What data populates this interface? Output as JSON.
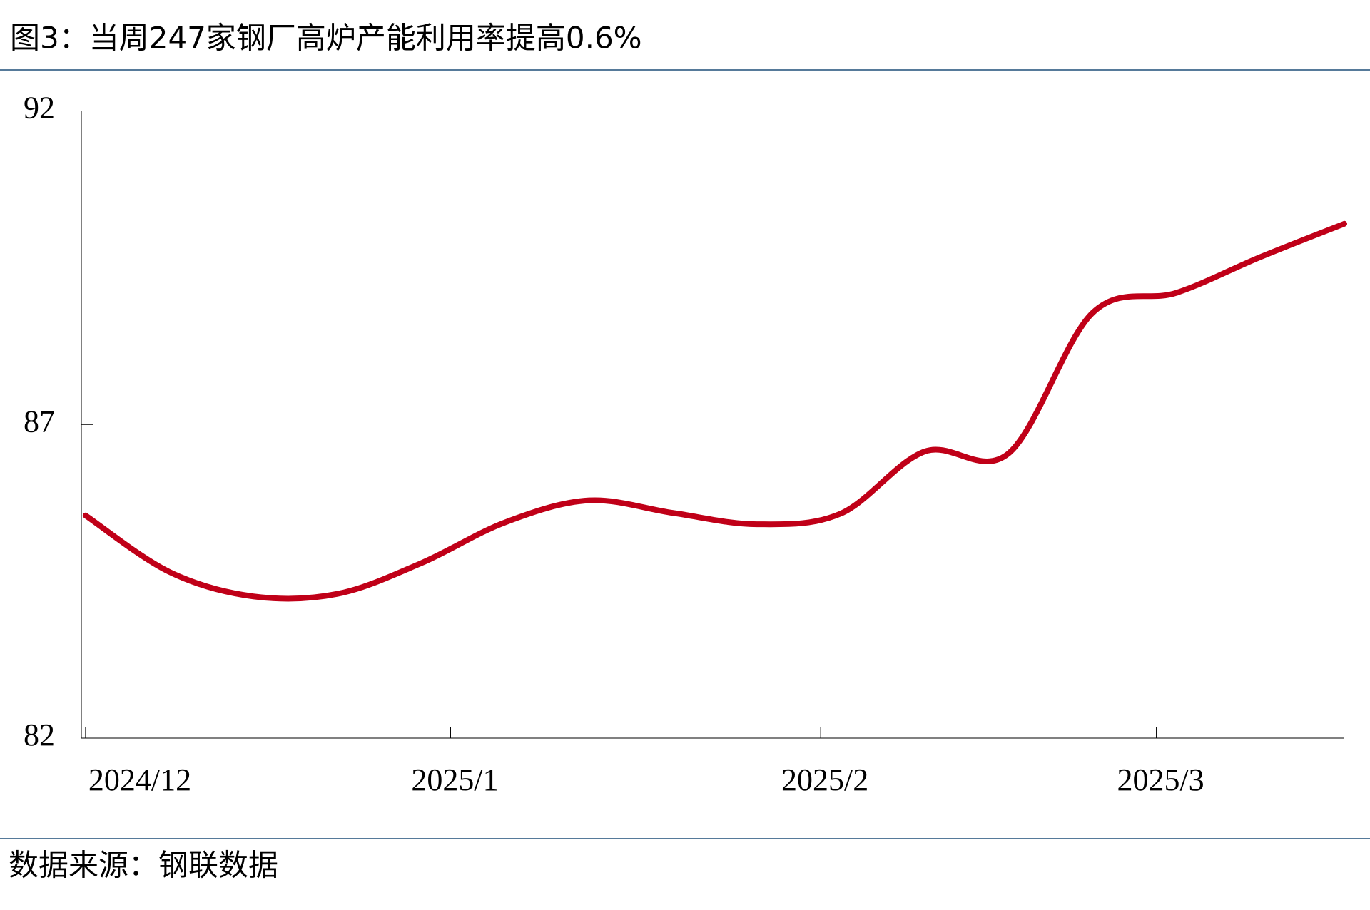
{
  "chart_data": {
    "type": "line",
    "title": "图3：当周247家钢厂高炉产能利用率提高0.6%",
    "source": "数据来源：钢联数据",
    "x": [
      0,
      1,
      2,
      3,
      4,
      5,
      6,
      7,
      8,
      9,
      10,
      11,
      12,
      13,
      14,
      15
    ],
    "series": [
      {
        "name": null,
        "color": "#c00018",
        "values": [
          85.55,
          84.65,
          84.26,
          84.3,
          84.79,
          85.44,
          85.79,
          85.59,
          85.41,
          85.58,
          86.57,
          86.54,
          88.78,
          89.1,
          89.67,
          90.2
        ]
      }
    ],
    "xlim": [
      -0.05,
      15
    ],
    "xticks": [
      {
        "value": 0,
        "label": "2024/12"
      },
      {
        "value": 4.35,
        "label": "2025/1"
      },
      {
        "value": 8.76,
        "label": "2025/2"
      },
      {
        "value": 12.76,
        "label": "2025/3"
      }
    ],
    "ylim": [
      82,
      92
    ],
    "yticks": [
      82,
      87,
      92
    ],
    "grid": false
  }
}
